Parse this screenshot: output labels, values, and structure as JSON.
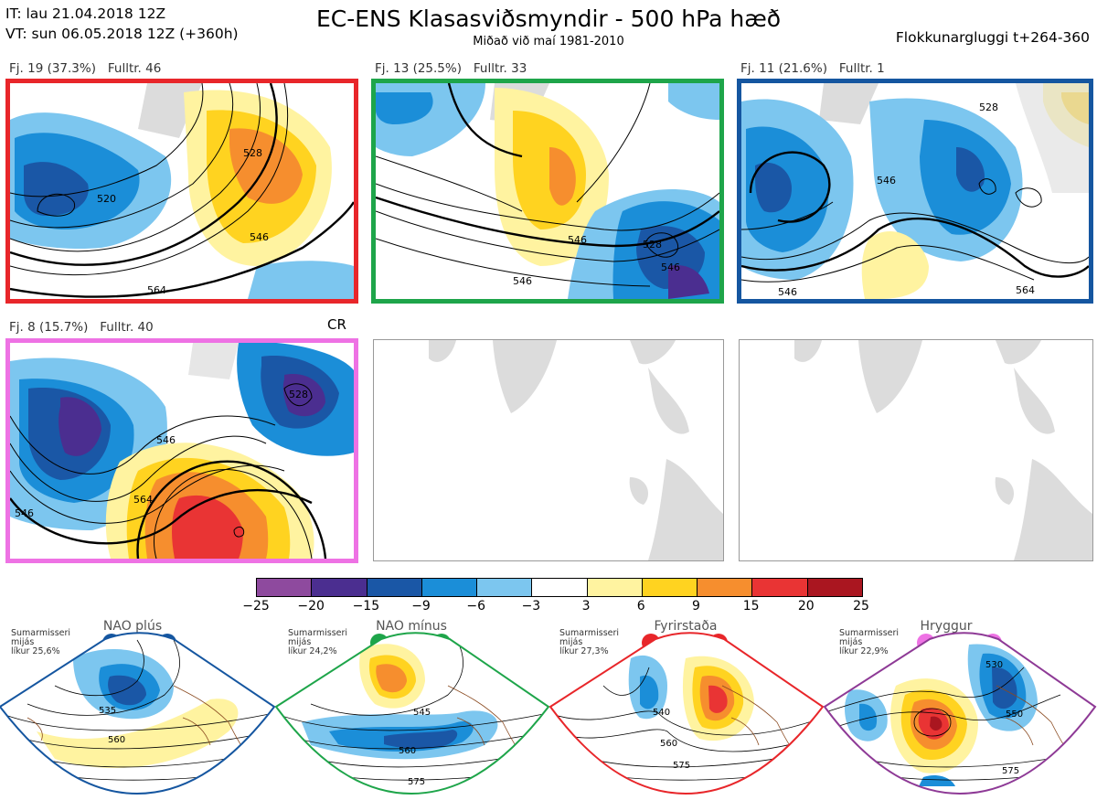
{
  "header": {
    "it_line": "IT: lau 21.04.2018 12Z",
    "vt_line": "VT: sun 06.05.2018 12Z  (+360h)",
    "title": "EC-ENS Klasasviðsmyndir - 500 hPa hæð",
    "subtitle": "Miðað við maí 1981-2010",
    "window_label": "Flokkunargluggi t+264-360"
  },
  "clusters": [
    {
      "label": "Fj. 19 (37.3%)   Fulltr. 46",
      "border_color": "#e8262a",
      "contours": [
        "528",
        "546",
        "564",
        "520"
      ]
    },
    {
      "label": "Fj. 13 (25.5%)   Fulltr. 33",
      "border_color": "#1ea54a",
      "contours": [
        "546",
        "528",
        "546",
        "546"
      ]
    },
    {
      "label": "Fj. 11 (21.6%)   Fulltr. 1",
      "border_color": "#1556a0",
      "contours": [
        "546",
        "564",
        "546",
        "528"
      ]
    },
    {
      "label": "Fj. 8 (15.7%)   Fulltr. 40",
      "border_color": "#ee72e4",
      "contours": [
        "546",
        "564",
        "528",
        "546"
      ]
    }
  ],
  "cr_label": "CR",
  "colorbar": {
    "ticks": [
      "−25",
      "−20",
      "−15",
      "−9",
      "−6",
      "−3",
      "3",
      "6",
      "9",
      "15",
      "20",
      "25"
    ],
    "colors": [
      "#8e4a9e",
      "#4b2e90",
      "#1a57a6",
      "#1b8ed8",
      "#7cc6ef",
      "#ffffff",
      "#fff3a0",
      "#ffd320",
      "#f68e2e",
      "#e93434",
      "#aa1620"
    ]
  },
  "regimes": [
    {
      "name": "NAO plús",
      "season": "Sumarmisseri\nmijás\nlíkur 25,6%",
      "color": "#1556a0",
      "contours": [
        "535",
        "560"
      ]
    },
    {
      "name": "NAO mínus",
      "season": "Sumarmisseri\nmijás\nlíkur 24,2%",
      "color": "#1ea54a",
      "contours": [
        "545",
        "560",
        "575"
      ]
    },
    {
      "name": "Fyrirstaða",
      "season": "Sumarmisseri\nmijás\nlíkur 27,3%",
      "color": "#e8262a",
      "contours": [
        "540",
        "560",
        "575"
      ]
    },
    {
      "name": "Hryggur",
      "season": "Sumarmisseri\nmijás\nlíkur 22,9%",
      "color": "#ee72e4",
      "contours": [
        "530",
        "550",
        "575"
      ]
    }
  ],
  "chart_data": {
    "type": "heatmap",
    "title": "EC-ENS Klasasviðsmyndir - 500 hPa hæð",
    "subtitle": "Miðað við maí 1981-2010",
    "colorbar_ticks": [
      -25,
      -20,
      -15,
      -9,
      -6,
      -3,
      3,
      6,
      9,
      15,
      20,
      25
    ],
    "clusters": [
      {
        "id": 19,
        "probability_pct": 37.3,
        "representative_member": 46
      },
      {
        "id": 13,
        "probability_pct": 25.5,
        "representative_member": 33
      },
      {
        "id": 11,
        "probability_pct": 21.6,
        "representative_member": 1
      },
      {
        "id": 8,
        "probability_pct": 15.7,
        "representative_member": 40
      }
    ],
    "climatological_regimes": [
      {
        "name": "NAO plús",
        "probability_pct": 25.6
      },
      {
        "name": "NAO mínus",
        "probability_pct": 24.2
      },
      {
        "name": "Fyrirstaða",
        "probability_pct": 27.3
      },
      {
        "name": "Hryggur",
        "probability_pct": 22.9
      }
    ]
  }
}
